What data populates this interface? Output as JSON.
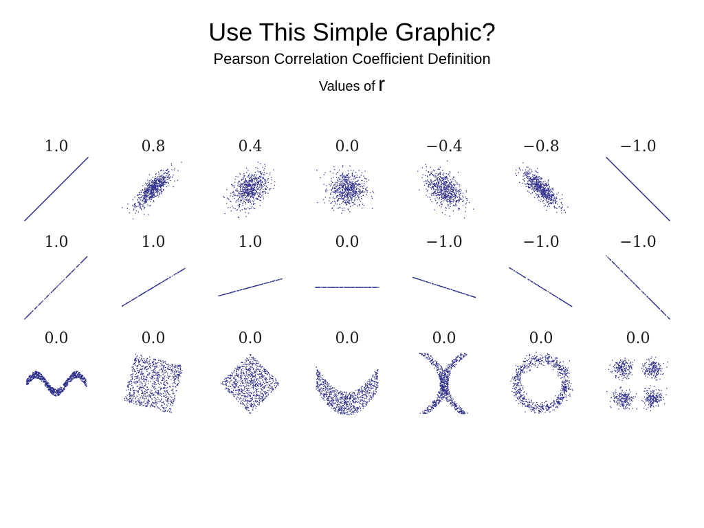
{
  "header": {
    "title": "Use This Simple Graphic?",
    "subtitle": "Pearson Correlation Coefficient Definition",
    "values_label": "Values of",
    "values_symbol": "r"
  },
  "colors": {
    "points": "#2e2f8c",
    "text": "#1a1a1a"
  },
  "chart_data": [
    {
      "type": "scatter",
      "row": 1,
      "description_kind": "correlation-strength",
      "panels": [
        {
          "r_label": "1.0",
          "r": 1.0,
          "shape": "perfect-line",
          "slope": 1
        },
        {
          "r_label": "0.8",
          "r": 0.8,
          "shape": "gaussian-ellipse"
        },
        {
          "r_label": "0.4",
          "r": 0.4,
          "shape": "gaussian-ellipse"
        },
        {
          "r_label": "0.0",
          "r": 0.0,
          "shape": "gaussian-ellipse"
        },
        {
          "r_label": "−0.4",
          "r": -0.4,
          "shape": "gaussian-ellipse"
        },
        {
          "r_label": "−0.8",
          "r": -0.8,
          "shape": "gaussian-ellipse"
        },
        {
          "r_label": "−1.0",
          "r": -1.0,
          "shape": "perfect-line",
          "slope": -1
        }
      ]
    },
    {
      "type": "scatter",
      "row": 2,
      "description_kind": "line-slope",
      "panels": [
        {
          "r_label": "1.0",
          "r": 1.0,
          "shape": "line",
          "slope": 1.0
        },
        {
          "r_label": "1.0",
          "r": 1.0,
          "shape": "line",
          "slope": 0.6
        },
        {
          "r_label": "1.0",
          "r": 1.0,
          "shape": "line",
          "slope": 0.27
        },
        {
          "r_label": "0.0",
          "r": 0.0,
          "shape": "line",
          "slope": 0.0
        },
        {
          "r_label": "−1.0",
          "r": -1.0,
          "shape": "line",
          "slope": -0.32
        },
        {
          "r_label": "−1.0",
          "r": -1.0,
          "shape": "line",
          "slope": -0.62
        },
        {
          "r_label": "−1.0",
          "r": -1.0,
          "shape": "line",
          "slope": -1.0
        }
      ]
    },
    {
      "type": "scatter",
      "row": 3,
      "description_kind": "nonlinear-zero-correlation",
      "panels": [
        {
          "r_label": "0.0",
          "r": 0.0,
          "shape": "wave"
        },
        {
          "r_label": "0.0",
          "r": 0.0,
          "shape": "rotated-square"
        },
        {
          "r_label": "0.0",
          "r": 0.0,
          "shape": "diamond"
        },
        {
          "r_label": "0.0",
          "r": 0.0,
          "shape": "parabola"
        },
        {
          "r_label": "0.0",
          "r": 0.0,
          "shape": "x-shape"
        },
        {
          "r_label": "0.0",
          "r": 0.0,
          "shape": "ring"
        },
        {
          "r_label": "0.0",
          "r": 0.0,
          "shape": "four-clusters"
        }
      ]
    }
  ]
}
